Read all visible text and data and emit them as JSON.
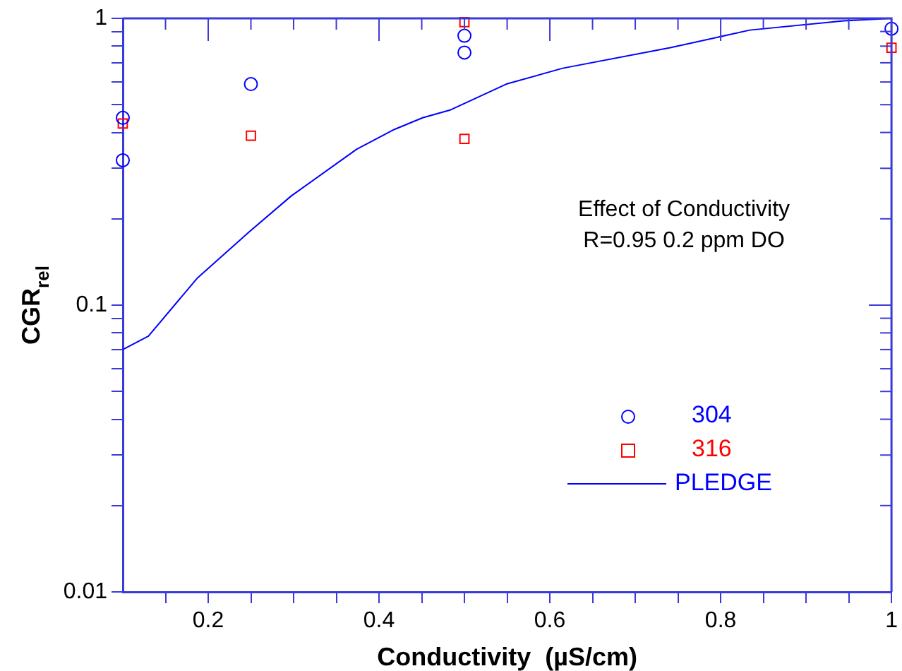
{
  "chart_data": {
    "type": "scatter",
    "xlabel": "Conductivity  (µS/cm)",
    "ylabel": "CGR$_{rel}$",
    "annotations": [
      "Effect of Conductivity",
      "R=0.95 0.2 ppm DO"
    ],
    "log": "y",
    "grid": false,
    "legend": "bottom right",
    "xlim": [
      0.1,
      1
    ],
    "xticks": [
      {
        "value": 0.15,
        "label": null
      },
      0.2,
      {
        "value": 0.25,
        "label": null
      },
      {
        "value": 0.3,
        "label": null
      },
      {
        "value": 0.35,
        "label": null
      },
      0.4,
      {
        "value": 0.45,
        "label": null
      },
      {
        "value": 0.5,
        "label": null
      },
      {
        "value": 0.55,
        "label": null
      },
      0.6,
      {
        "value": 0.65,
        "label": null
      },
      {
        "value": 0.7,
        "label": null
      },
      {
        "value": 0.75,
        "label": null
      },
      0.8,
      {
        "value": 0.85,
        "label": null
      },
      {
        "value": 0.9,
        "label": null
      },
      {
        "value": 0.95,
        "label": null
      },
      1
    ],
    "ylim": [
      0.01,
      1
    ],
    "yticks": [
      0.01,
      {
        "value": 0.02,
        "label": null
      },
      {
        "value": 0.03,
        "label": null
      },
      {
        "value": 0.04,
        "label": null
      },
      {
        "value": 0.05,
        "label": null
      },
      {
        "value": 0.06,
        "label": null
      },
      {
        "value": 0.07,
        "label": null
      },
      {
        "value": 0.08,
        "label": null
      },
      {
        "value": 0.09,
        "label": null
      },
      0.1,
      {
        "value": 0.2,
        "label": null
      },
      {
        "value": 0.3,
        "label": null
      },
      {
        "value": 0.4,
        "label": null
      },
      {
        "value": 0.5,
        "label": null
      },
      {
        "value": 0.6,
        "label": null
      },
      {
        "value": 0.7,
        "label": null
      },
      {
        "value": 0.8,
        "label": null
      },
      {
        "value": 0.9,
        "label": null
      },
      1
    ],
    "series": [
      {
        "name": "304",
        "marker": "circle",
        "color": "#0000ff",
        "x": [
          0.1,
          0.1,
          0.25,
          0.5,
          0.5,
          1
        ],
        "values": [
          0.45,
          0.32,
          0.59,
          0.87,
          0.76,
          0.92
        ]
      },
      {
        "name": "316",
        "marker": "square",
        "color": "#ff0000",
        "x": [
          0.1,
          0.25,
          0.5,
          0.5,
          1
        ],
        "values": [
          0.43,
          0.39,
          0.97,
          0.38,
          0.79
        ]
      },
      {
        "name": "PLEDGE",
        "type": "line",
        "marker": "none",
        "line_style": "solid",
        "color": "#0000ff",
        "x": [
          0.1,
          0.13,
          0.187,
          0.248,
          0.297,
          0.374,
          0.418,
          0.451,
          0.484,
          0.549,
          0.615,
          0.741,
          0.834,
          0.944,
          1
        ],
        "values": [
          0.07,
          0.078,
          0.124,
          0.18,
          0.24,
          0.35,
          0.41,
          0.45,
          0.48,
          0.59,
          0.67,
          0.79,
          0.91,
          0.98,
          1
        ]
      }
    ]
  }
}
